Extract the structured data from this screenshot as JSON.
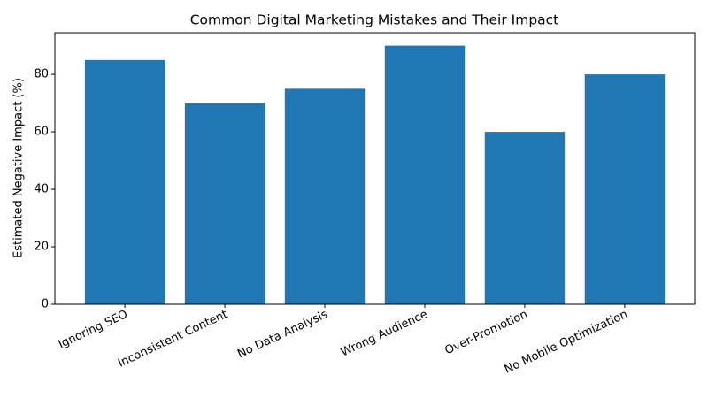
{
  "chart_data": {
    "type": "bar",
    "title": "Common Digital Marketing Mistakes and Their Impact",
    "y_label": "Estimated Negative Impact (%)",
    "categories": [
      "Ignoring SEO",
      "Inconsistent Content",
      "No Data Analysis",
      "Wrong Audience",
      "Over-Promotion",
      "No Mobile Optimization"
    ],
    "values": [
      85,
      70,
      75,
      90,
      60,
      80
    ],
    "color": "#1f77b4",
    "ylim": [
      0,
      94.5
    ],
    "yticks": [
      0,
      20,
      40,
      60,
      80
    ],
    "grid": false
  }
}
